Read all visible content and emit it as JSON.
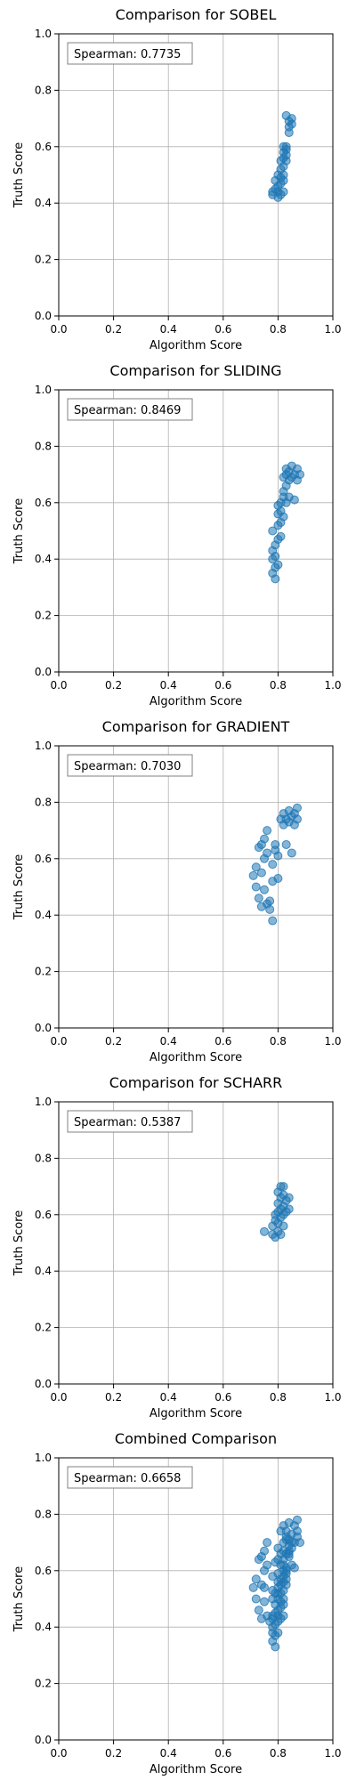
{
  "chart_data": [
    {
      "type": "scatter",
      "title": "Comparison for SOBEL",
      "xlabel": "Algorithm Score",
      "ylabel": "Truth Score",
      "xlim": [
        0,
        1
      ],
      "ylim": [
        0,
        1
      ],
      "xticks": [
        "0.0",
        "0.2",
        "0.4",
        "0.6",
        "0.8",
        "1.0"
      ],
      "yticks": [
        "0.0",
        "0.2",
        "0.4",
        "0.6",
        "0.8",
        "1.0"
      ],
      "grid": true,
      "annotation": "Spearman: 0.7735",
      "color": "#1f77b4",
      "points": [
        [
          0.78,
          0.43
        ],
        [
          0.78,
          0.44
        ],
        [
          0.79,
          0.45
        ],
        [
          0.79,
          0.48
        ],
        [
          0.8,
          0.42
        ],
        [
          0.8,
          0.44
        ],
        [
          0.8,
          0.46
        ],
        [
          0.8,
          0.5
        ],
        [
          0.81,
          0.43
        ],
        [
          0.81,
          0.47
        ],
        [
          0.81,
          0.49
        ],
        [
          0.81,
          0.52
        ],
        [
          0.81,
          0.55
        ],
        [
          0.82,
          0.44
        ],
        [
          0.82,
          0.48
        ],
        [
          0.82,
          0.5
        ],
        [
          0.82,
          0.53
        ],
        [
          0.82,
          0.56
        ],
        [
          0.82,
          0.58
        ],
        [
          0.82,
          0.6
        ],
        [
          0.83,
          0.55
        ],
        [
          0.83,
          0.57
        ],
        [
          0.83,
          0.59
        ],
        [
          0.83,
          0.6
        ],
        [
          0.83,
          0.71
        ],
        [
          0.84,
          0.65
        ],
        [
          0.84,
          0.67
        ],
        [
          0.84,
          0.69
        ],
        [
          0.85,
          0.68
        ],
        [
          0.85,
          0.7
        ]
      ]
    },
    {
      "type": "scatter",
      "title": "Comparison for SLIDING",
      "xlabel": "Algorithm Score",
      "ylabel": "Truth Score",
      "xlim": [
        0,
        1
      ],
      "ylim": [
        0,
        1
      ],
      "xticks": [
        "0.0",
        "0.2",
        "0.4",
        "0.6",
        "0.8",
        "1.0"
      ],
      "yticks": [
        "0.0",
        "0.2",
        "0.4",
        "0.6",
        "0.8",
        "1.0"
      ],
      "grid": true,
      "annotation": "Spearman: 0.8469",
      "color": "#1f77b4",
      "points": [
        [
          0.78,
          0.35
        ],
        [
          0.78,
          0.4
        ],
        [
          0.78,
          0.43
        ],
        [
          0.78,
          0.5
        ],
        [
          0.79,
          0.33
        ],
        [
          0.79,
          0.37
        ],
        [
          0.79,
          0.41
        ],
        [
          0.79,
          0.45
        ],
        [
          0.8,
          0.38
        ],
        [
          0.8,
          0.47
        ],
        [
          0.8,
          0.52
        ],
        [
          0.8,
          0.56
        ],
        [
          0.8,
          0.59
        ],
        [
          0.81,
          0.48
        ],
        [
          0.81,
          0.53
        ],
        [
          0.81,
          0.57
        ],
        [
          0.81,
          0.6
        ],
        [
          0.82,
          0.55
        ],
        [
          0.82,
          0.62
        ],
        [
          0.82,
          0.64
        ],
        [
          0.82,
          0.69
        ],
        [
          0.83,
          0.6
        ],
        [
          0.83,
          0.66
        ],
        [
          0.83,
          0.7
        ],
        [
          0.83,
          0.72
        ],
        [
          0.84,
          0.62
        ],
        [
          0.84,
          0.68
        ],
        [
          0.84,
          0.71
        ],
        [
          0.85,
          0.73
        ],
        [
          0.85,
          0.69
        ],
        [
          0.86,
          0.61
        ],
        [
          0.86,
          0.7
        ],
        [
          0.87,
          0.68
        ],
        [
          0.87,
          0.72
        ],
        [
          0.88,
          0.7
        ]
      ]
    },
    {
      "type": "scatter",
      "title": "Comparison for GRADIENT",
      "xlabel": "Algorithm Score",
      "ylabel": "Truth Score",
      "xlim": [
        0,
        1
      ],
      "ylim": [
        0,
        1
      ],
      "xticks": [
        "0.0",
        "0.2",
        "0.4",
        "0.6",
        "0.8",
        "1.0"
      ],
      "yticks": [
        "0.0",
        "0.2",
        "0.4",
        "0.6",
        "0.8",
        "1.0"
      ],
      "grid": true,
      "annotation": "Spearman: 0.7030",
      "color": "#1f77b4",
      "points": [
        [
          0.71,
          0.54
        ],
        [
          0.72,
          0.5
        ],
        [
          0.72,
          0.57
        ],
        [
          0.73,
          0.46
        ],
        [
          0.73,
          0.64
        ],
        [
          0.74,
          0.43
        ],
        [
          0.74,
          0.55
        ],
        [
          0.74,
          0.65
        ],
        [
          0.75,
          0.49
        ],
        [
          0.75,
          0.6
        ],
        [
          0.75,
          0.67
        ],
        [
          0.76,
          0.44
        ],
        [
          0.76,
          0.62
        ],
        [
          0.76,
          0.7
        ],
        [
          0.77,
          0.42
        ],
        [
          0.77,
          0.45
        ],
        [
          0.78,
          0.38
        ],
        [
          0.78,
          0.52
        ],
        [
          0.78,
          0.58
        ],
        [
          0.79,
          0.63
        ],
        [
          0.79,
          0.65
        ],
        [
          0.8,
          0.53
        ],
        [
          0.8,
          0.61
        ],
        [
          0.81,
          0.74
        ],
        [
          0.82,
          0.72
        ],
        [
          0.82,
          0.76
        ],
        [
          0.83,
          0.65
        ],
        [
          0.83,
          0.74
        ],
        [
          0.84,
          0.73
        ],
        [
          0.84,
          0.77
        ],
        [
          0.85,
          0.62
        ],
        [
          0.85,
          0.75
        ],
        [
          0.86,
          0.72
        ],
        [
          0.86,
          0.76
        ],
        [
          0.87,
          0.74
        ],
        [
          0.87,
          0.78
        ]
      ]
    },
    {
      "type": "scatter",
      "title": "Comparison for SCHARR",
      "xlabel": "Algorithm Score",
      "ylabel": "Truth Score",
      "xlim": [
        0,
        1
      ],
      "ylim": [
        0,
        1
      ],
      "xticks": [
        "0.0",
        "0.2",
        "0.4",
        "0.6",
        "0.8",
        "1.0"
      ],
      "yticks": [
        "0.0",
        "0.2",
        "0.4",
        "0.6",
        "0.8",
        "1.0"
      ],
      "grid": true,
      "annotation": "Spearman: 0.5387",
      "color": "#1f77b4",
      "points": [
        [
          0.75,
          0.54
        ],
        [
          0.78,
          0.53
        ],
        [
          0.78,
          0.56
        ],
        [
          0.79,
          0.52
        ],
        [
          0.79,
          0.58
        ],
        [
          0.79,
          0.6
        ],
        [
          0.8,
          0.54
        ],
        [
          0.8,
          0.57
        ],
        [
          0.8,
          0.61
        ],
        [
          0.8,
          0.64
        ],
        [
          0.8,
          0.68
        ],
        [
          0.81,
          0.53
        ],
        [
          0.81,
          0.59
        ],
        [
          0.81,
          0.62
        ],
        [
          0.81,
          0.66
        ],
        [
          0.81,
          0.7
        ],
        [
          0.82,
          0.56
        ],
        [
          0.82,
          0.6
        ],
        [
          0.82,
          0.63
        ],
        [
          0.82,
          0.67
        ],
        [
          0.82,
          0.7
        ],
        [
          0.83,
          0.61
        ],
        [
          0.83,
          0.65
        ],
        [
          0.84,
          0.62
        ],
        [
          0.84,
          0.66
        ]
      ]
    },
    {
      "type": "scatter",
      "title": "Combined Comparison",
      "xlabel": "Algorithm Score",
      "ylabel": "Truth Score",
      "xlim": [
        0,
        1
      ],
      "ylim": [
        0,
        1
      ],
      "xticks": [
        "0.0",
        "0.2",
        "0.4",
        "0.6",
        "0.8",
        "1.0"
      ],
      "yticks": [
        "0.0",
        "0.2",
        "0.4",
        "0.6",
        "0.8",
        "1.0"
      ],
      "grid": true,
      "annotation": "Spearman: 0.6658",
      "color": "#1f77b4",
      "points": [
        [
          0.78,
          0.43
        ],
        [
          0.78,
          0.44
        ],
        [
          0.79,
          0.45
        ],
        [
          0.79,
          0.48
        ],
        [
          0.8,
          0.42
        ],
        [
          0.8,
          0.44
        ],
        [
          0.8,
          0.46
        ],
        [
          0.8,
          0.5
        ],
        [
          0.81,
          0.43
        ],
        [
          0.81,
          0.47
        ],
        [
          0.81,
          0.49
        ],
        [
          0.81,
          0.52
        ],
        [
          0.81,
          0.55
        ],
        [
          0.82,
          0.44
        ],
        [
          0.82,
          0.48
        ],
        [
          0.82,
          0.5
        ],
        [
          0.82,
          0.53
        ],
        [
          0.82,
          0.56
        ],
        [
          0.82,
          0.58
        ],
        [
          0.82,
          0.6
        ],
        [
          0.83,
          0.55
        ],
        [
          0.83,
          0.57
        ],
        [
          0.83,
          0.59
        ],
        [
          0.83,
          0.6
        ],
        [
          0.83,
          0.71
        ],
        [
          0.84,
          0.65
        ],
        [
          0.84,
          0.67
        ],
        [
          0.84,
          0.69
        ],
        [
          0.85,
          0.68
        ],
        [
          0.85,
          0.7
        ],
        [
          0.78,
          0.35
        ],
        [
          0.78,
          0.4
        ],
        [
          0.78,
          0.5
        ],
        [
          0.79,
          0.33
        ],
        [
          0.79,
          0.37
        ],
        [
          0.79,
          0.41
        ],
        [
          0.8,
          0.38
        ],
        [
          0.8,
          0.52
        ],
        [
          0.8,
          0.56
        ],
        [
          0.8,
          0.59
        ],
        [
          0.81,
          0.57
        ],
        [
          0.82,
          0.62
        ],
        [
          0.82,
          0.64
        ],
        [
          0.83,
          0.66
        ],
        [
          0.83,
          0.72
        ],
        [
          0.84,
          0.71
        ],
        [
          0.85,
          0.73
        ],
        [
          0.86,
          0.61
        ],
        [
          0.86,
          0.7
        ],
        [
          0.87,
          0.72
        ],
        [
          0.88,
          0.7
        ],
        [
          0.71,
          0.54
        ],
        [
          0.72,
          0.5
        ],
        [
          0.72,
          0.57
        ],
        [
          0.73,
          0.46
        ],
        [
          0.73,
          0.64
        ],
        [
          0.74,
          0.43
        ],
        [
          0.74,
          0.55
        ],
        [
          0.74,
          0.65
        ],
        [
          0.75,
          0.49
        ],
        [
          0.75,
          0.6
        ],
        [
          0.75,
          0.67
        ],
        [
          0.76,
          0.44
        ],
        [
          0.76,
          0.62
        ],
        [
          0.76,
          0.7
        ],
        [
          0.77,
          0.42
        ],
        [
          0.78,
          0.38
        ],
        [
          0.78,
          0.58
        ],
        [
          0.79,
          0.63
        ],
        [
          0.81,
          0.74
        ],
        [
          0.82,
          0.76
        ],
        [
          0.83,
          0.74
        ],
        [
          0.84,
          0.77
        ],
        [
          0.85,
          0.62
        ],
        [
          0.86,
          0.76
        ],
        [
          0.87,
          0.74
        ],
        [
          0.87,
          0.78
        ],
        [
          0.75,
          0.54
        ],
        [
          0.78,
          0.53
        ],
        [
          0.79,
          0.52
        ],
        [
          0.8,
          0.54
        ],
        [
          0.8,
          0.64
        ],
        [
          0.8,
          0.68
        ],
        [
          0.81,
          0.62
        ],
        [
          0.81,
          0.66
        ],
        [
          0.82,
          0.67
        ],
        [
          0.82,
          0.7
        ],
        [
          0.83,
          0.61
        ],
        [
          0.84,
          0.66
        ]
      ]
    }
  ]
}
